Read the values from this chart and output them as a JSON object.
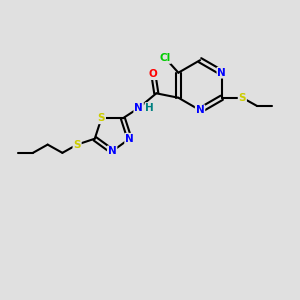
{
  "bg_color": "#e0e0e0",
  "bond_color": "#000000",
  "atom_colors": {
    "N": "#0000ff",
    "O": "#ff0000",
    "S": "#cccc00",
    "Cl": "#00cc00",
    "H": "#008080",
    "C": "#000000"
  }
}
